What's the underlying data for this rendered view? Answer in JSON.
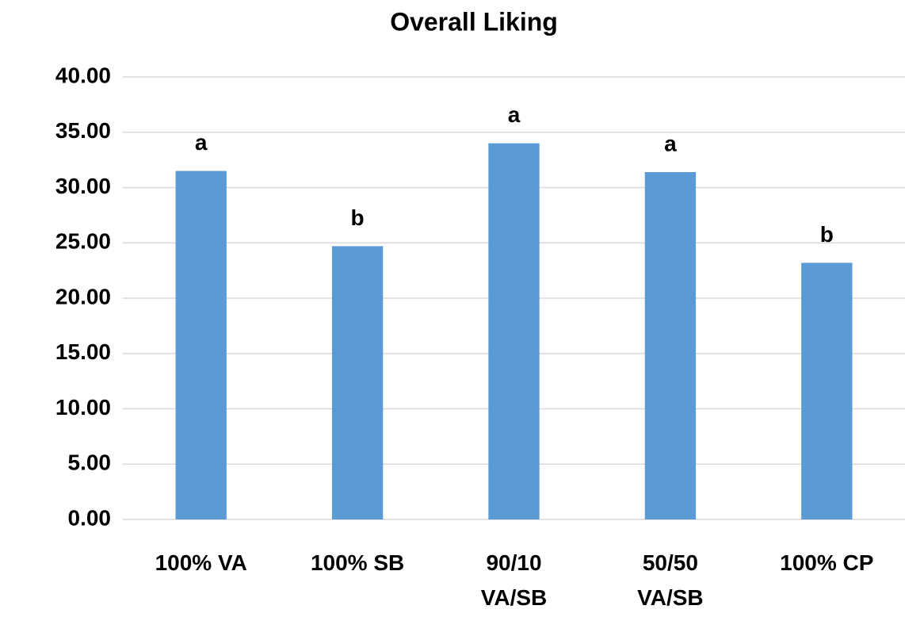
{
  "chart_data": {
    "type": "bar",
    "title": "Overall Liking",
    "categories": [
      "100% VA",
      "100% SB",
      "90/10\nVA/SB",
      "50/50\nVA/SB",
      "100% CP"
    ],
    "values": [
      31.5,
      24.7,
      34.0,
      31.4,
      23.2
    ],
    "annotations": [
      "a",
      "b",
      "a",
      "a",
      "b"
    ],
    "color": "#5b9bd5",
    "ylim": [
      0,
      40
    ],
    "yticks": [
      {
        "value": 0,
        "label": "0.00"
      },
      {
        "value": 5,
        "label": "5.00"
      },
      {
        "value": 10,
        "label": "10.00"
      },
      {
        "value": 15,
        "label": "15.00"
      },
      {
        "value": 20,
        "label": "20.00"
      },
      {
        "value": 25,
        "label": "25.00"
      },
      {
        "value": 30,
        "label": "30.00"
      },
      {
        "value": 35,
        "label": "35.00"
      },
      {
        "value": 40,
        "label": "40.00"
      }
    ],
    "grid": true
  }
}
